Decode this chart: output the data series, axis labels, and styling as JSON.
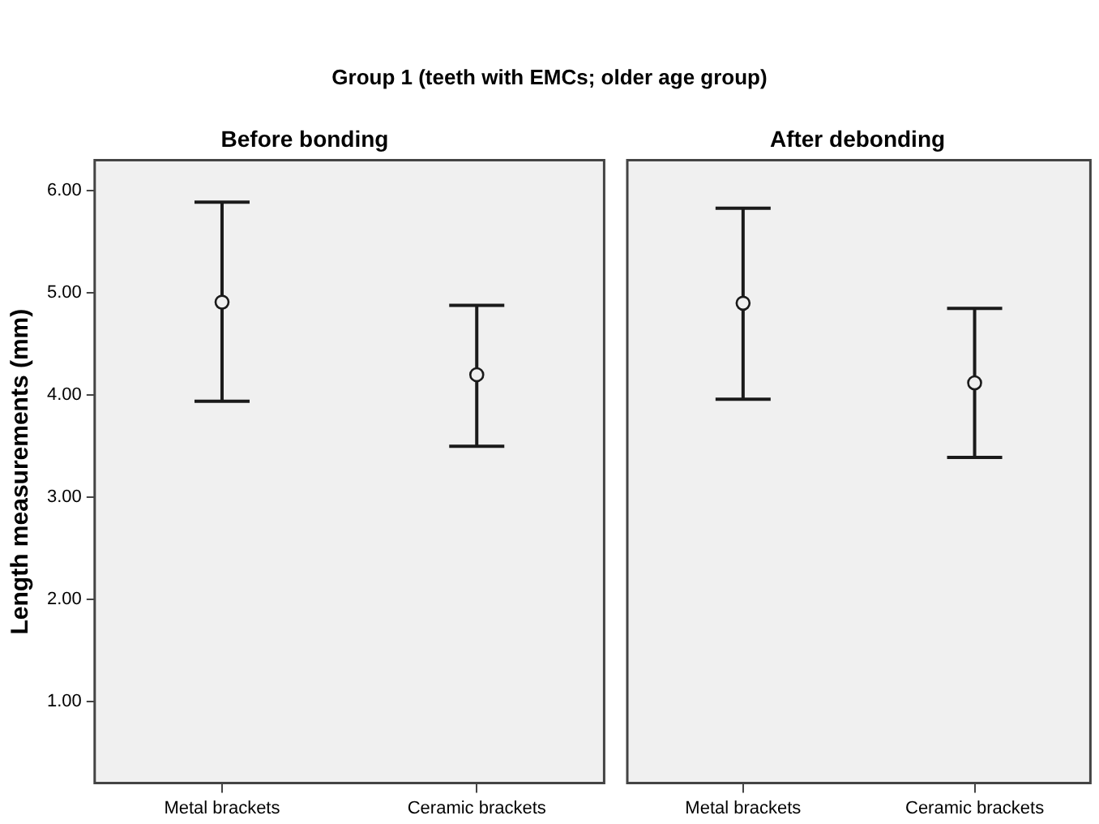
{
  "chart_data": [
    {
      "type": "scatter",
      "title": "Before bonding",
      "ylabel": "Length measurements (mm)",
      "annotations": [
        "Group 1 (teeth with EMCs; older age group)"
      ],
      "categories": [
        "Metal brackets",
        "Ceramic brackets"
      ],
      "series": [
        {
          "color": "#1a1a1a",
          "values": [
            4.91,
            4.2
          ],
          "errors": [
            [
              3.94,
              5.89
            ],
            [
              3.5,
              4.88
            ]
          ]
        }
      ],
      "ylim": [
        0.2,
        6.3
      ],
      "yticks": [
        {
          "value": 1,
          "label": "1.00"
        },
        {
          "value": 2,
          "label": "2.00"
        },
        {
          "value": 3,
          "label": "3.00"
        },
        {
          "value": 4,
          "label": "4.00"
        },
        {
          "value": 5,
          "label": "5.00"
        },
        {
          "value": 6,
          "label": "6.00"
        }
      ],
      "marker": "circle",
      "grid": false,
      "legend": false
    },
    {
      "type": "scatter",
      "title": "After debonding",
      "categories": [
        "Metal brackets",
        "Ceramic brackets"
      ],
      "series": [
        {
          "color": "#1a1a1a",
          "values": [
            4.9,
            4.12
          ],
          "errors": [
            [
              3.96,
              5.83
            ],
            [
              3.39,
              4.85
            ]
          ]
        }
      ],
      "ylim": [
        0.2,
        6.3
      ],
      "tick_labels": "x",
      "marker": "circle",
      "grid": false,
      "legend": false
    }
  ]
}
